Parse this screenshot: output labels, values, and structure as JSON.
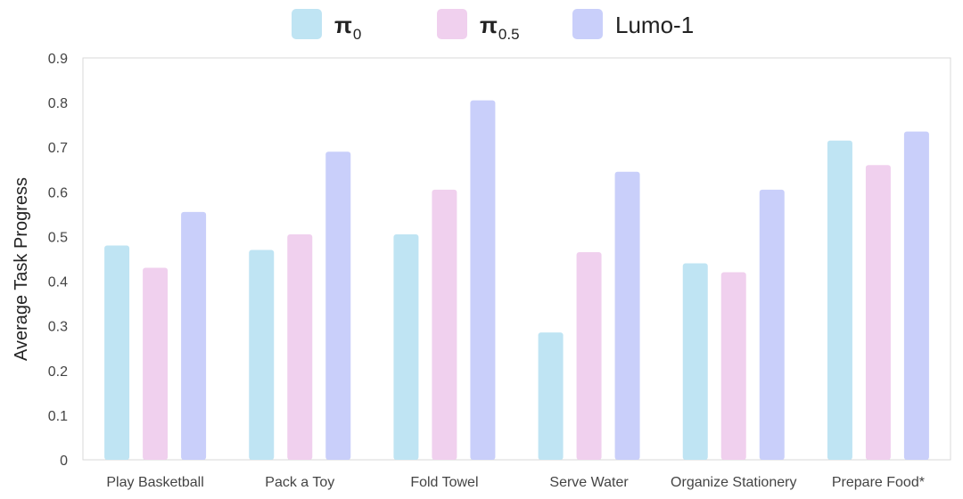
{
  "chart_data": {
    "type": "bar",
    "title": "",
    "xlabel": "",
    "ylabel": "Average Task Progress",
    "ylim": [
      0,
      0.9
    ],
    "yticks": [
      "0",
      "0.1",
      "0.2",
      "0.3",
      "0.4",
      "0.5",
      "0.6",
      "0.7",
      "0.8",
      "0.9"
    ],
    "categories": [
      "Play Basketball",
      "Pack a Toy",
      "Fold Towel",
      "Serve Water",
      "Organize Stationery",
      "Prepare Food*"
    ],
    "series": [
      {
        "name": "π0",
        "name_base": "π",
        "name_sub": "0",
        "color": "#bfe4f3",
        "values": [
          0.48,
          0.47,
          0.505,
          0.285,
          0.44,
          0.715
        ]
      },
      {
        "name": "π0.5",
        "name_base": "π",
        "name_sub": "0.5",
        "color": "#f0d0ee",
        "values": [
          0.43,
          0.505,
          0.605,
          0.465,
          0.42,
          0.66
        ]
      },
      {
        "name": "Lumo-1",
        "name_base": "Lumo-1",
        "name_sub": "",
        "color": "#c9cffa",
        "values": [
          0.555,
          0.69,
          0.805,
          0.645,
          0.605,
          0.735
        ]
      }
    ],
    "legend_position": "top-center",
    "grid": false
  }
}
